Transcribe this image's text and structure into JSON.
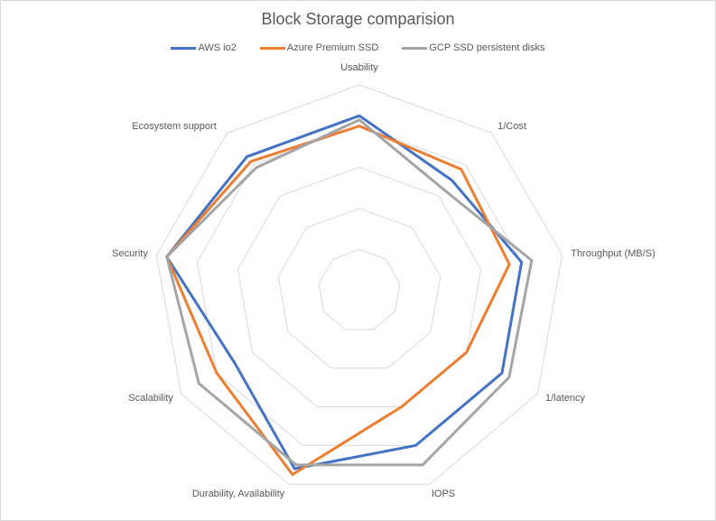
{
  "chart_data": {
    "type": "radar",
    "title": "Block Storage comparision",
    "categories": [
      "Usability",
      "1/Cost",
      "Throughput (MB/S)",
      "1/latency",
      "IOPS",
      "Durability, Availability",
      "Scalability",
      "Security",
      "Ecosystem support"
    ],
    "rlim": [
      0,
      5
    ],
    "rings": 5,
    "grid": true,
    "legend": "top",
    "series": [
      {
        "name": "AWS io2",
        "color": "#4472c4",
        "values": [
          4.25,
          3.5,
          4.0,
          4.0,
          4.0,
          4.6,
          3.5,
          4.75,
          4.25
        ]
      },
      {
        "name": "Azure Premium SSD",
        "color": "#ed7d31",
        "values": [
          4.0,
          3.85,
          3.7,
          3.0,
          3.0,
          4.75,
          4.0,
          4.75,
          4.1
        ]
      },
      {
        "name": "GCP SSD persistent disks",
        "color": "#a5a5a5",
        "values": [
          4.15,
          3.2,
          4.25,
          4.2,
          4.5,
          4.5,
          4.5,
          4.75,
          3.9
        ]
      }
    ]
  }
}
